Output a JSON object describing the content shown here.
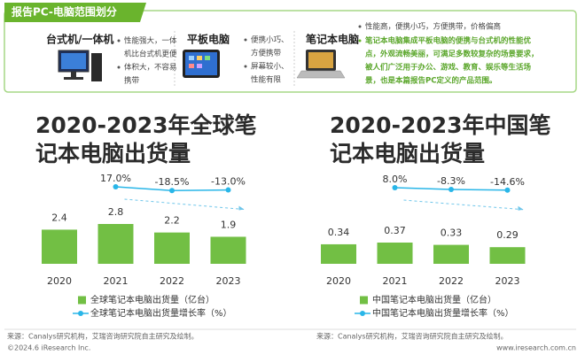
{
  "header": {
    "title": "报告PC-电脑范围划分",
    "devices": [
      {
        "name": "台式机/一体机",
        "lines": [
          "性能强大，一体",
          "机比台式机更便",
          "体积大，不容易",
          "携带"
        ]
      },
      {
        "name": "平板电脑",
        "lines": [
          "便携小巧、",
          "方便携带",
          "屏幕较小、",
          "性能有限"
        ]
      },
      {
        "name": "笔记本电脑",
        "lines": [
          "性能高，便携小巧，方便携带，价格偏高",
          "笔记本电脑集成平板电脑的便携与台式机的性能优",
          "点，外观流畅美丽，可满足多数较复杂的场景要求，",
          "被人们广泛用于办公、游戏、教育、娱乐等生活场",
          "景，也是本篇报告PC定义的产品范围。"
        ]
      }
    ]
  },
  "chart_data": [
    {
      "type": "bar",
      "title": "2020-2023年全球笔记本电脑出货量",
      "categories": [
        "2020",
        "2021",
        "2022",
        "2023"
      ],
      "series": [
        {
          "name": "全球笔记本电脑出货量（亿台）",
          "type": "bar",
          "color": "#72bf44",
          "values": [
            2.4,
            2.8,
            2.2,
            1.9
          ]
        },
        {
          "name": "全球笔记本电脑出货量增长率（%）",
          "type": "line",
          "color": "#29b6e8",
          "values": [
            null,
            17.0,
            -18.5,
            -13.0
          ],
          "value_labels": [
            null,
            "17.0%",
            "-18.5%",
            "-13.0%"
          ]
        }
      ]
    },
    {
      "type": "bar",
      "title": "2020-2023年中国笔记本电脑出货量",
      "categories": [
        "2020",
        "2021",
        "2022",
        "2023"
      ],
      "series": [
        {
          "name": "中国笔记本电脑出货量（亿台）",
          "type": "bar",
          "color": "#72bf44",
          "values": [
            0.34,
            0.37,
            0.33,
            0.29
          ]
        },
        {
          "name": "中国笔记本电脑出货量增长率（%）",
          "type": "line",
          "color": "#29b6e8",
          "values": [
            null,
            8.0,
            -8.3,
            -14.6
          ],
          "value_labels": [
            null,
            "8.0%",
            "-8.3%",
            "-14.6%"
          ]
        }
      ]
    }
  ],
  "sources": [
    "来源：Canalys研究机构，艾瑞咨询研究院自主研究及绘制。",
    "来源：Canalys研究机构，艾瑞咨询研究院自主研究及绘制。"
  ],
  "footer": {
    "copyright": "©2024.6 iResearch Inc.",
    "site": "www.iresearch.com.cn"
  }
}
